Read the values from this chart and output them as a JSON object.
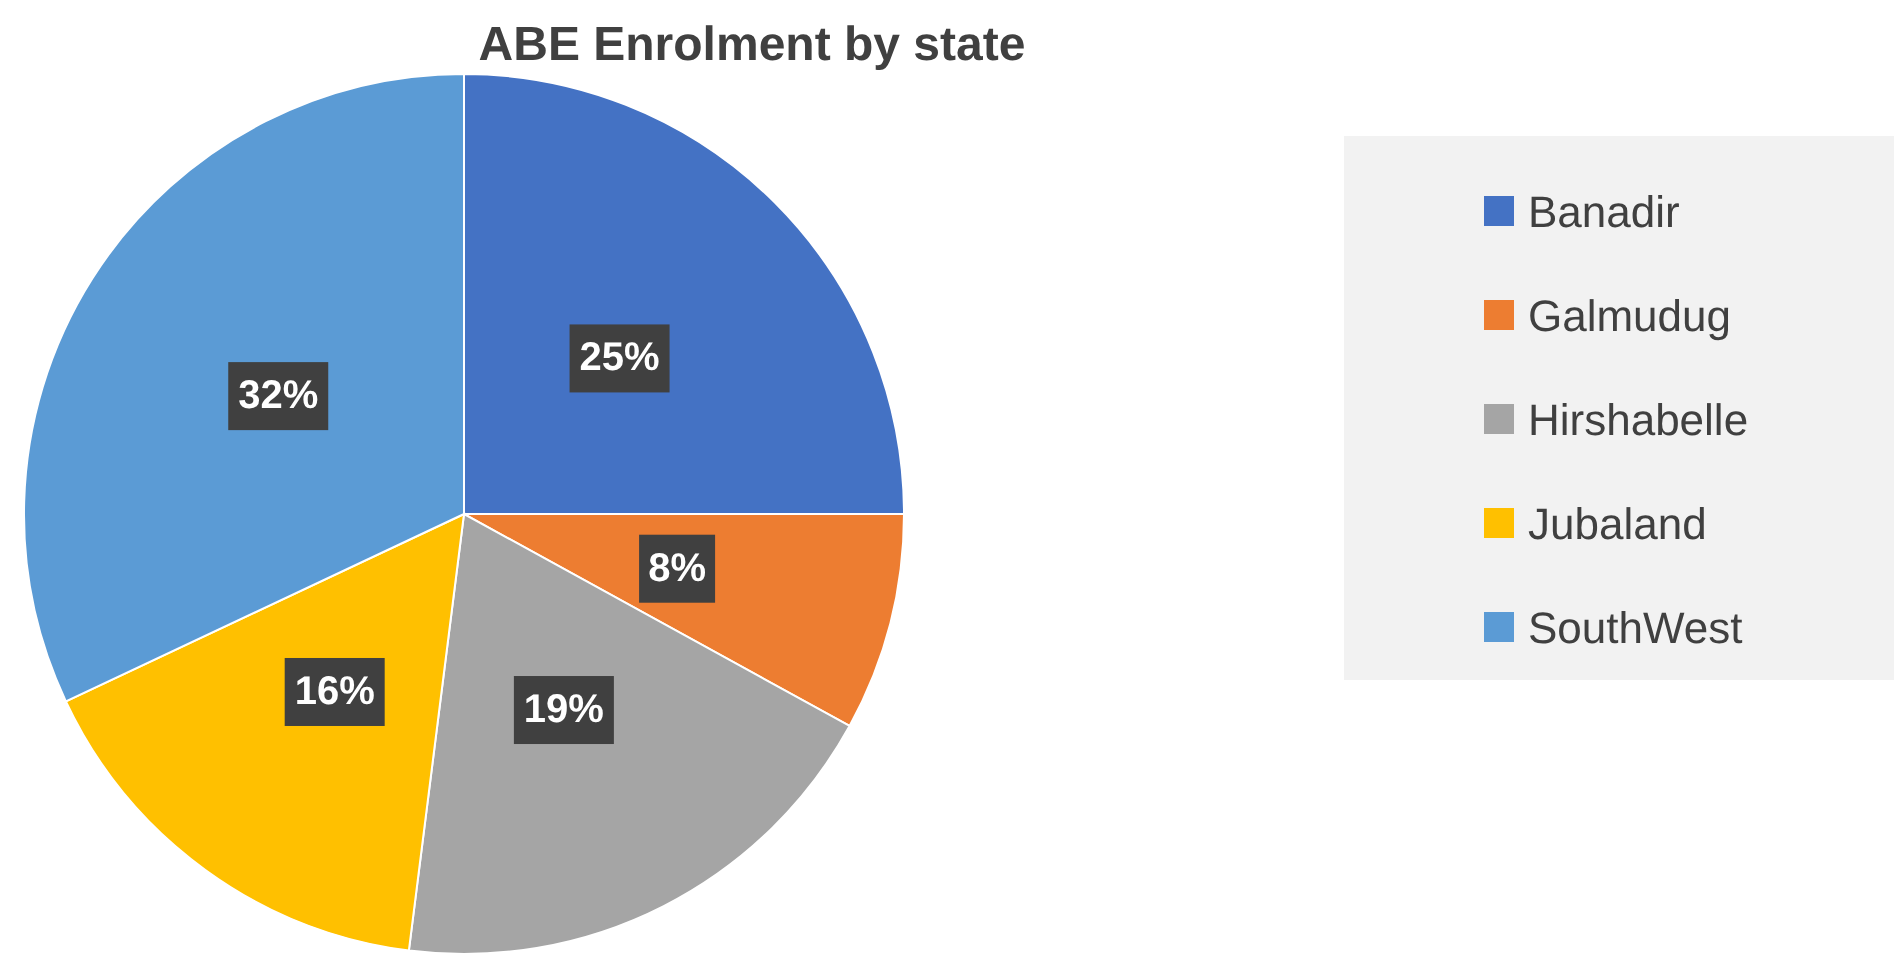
{
  "chart_data": {
    "type": "pie",
    "title": "ABE Enrolment by state",
    "categories": [
      "Banadir",
      "Galmudug",
      "Hirshabelle",
      "Jubaland",
      "SouthWest"
    ],
    "values": [
      25,
      8,
      19,
      16,
      32
    ],
    "colors": [
      "#4472c4",
      "#ed7d31",
      "#a5a5a5",
      "#ffc000",
      "#5b9bd5"
    ],
    "value_labels": [
      "25%",
      "8%",
      "19%",
      "16%",
      "32%"
    ],
    "legend": "right"
  }
}
